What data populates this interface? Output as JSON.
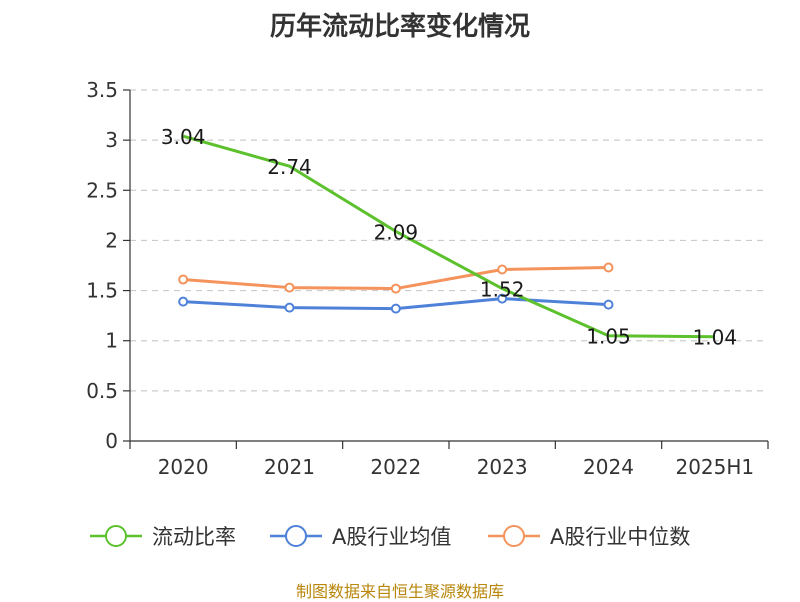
{
  "chart_data": {
    "type": "line",
    "title": "历年流动比率变化情况",
    "categories": [
      "2020",
      "2021",
      "2022",
      "2023",
      "2024",
      "2025H1"
    ],
    "ylim": [
      0,
      3.5
    ],
    "yticks": [
      "0",
      "0.5",
      "1",
      "1.5",
      "2",
      "2.5",
      "3",
      "3.5"
    ],
    "grid": true,
    "legend_position": "bottom",
    "series": [
      {
        "name": "流动比率",
        "color": "#5cc12d",
        "values": [
          3.04,
          2.74,
          2.09,
          1.52,
          1.05,
          1.04
        ],
        "labels": [
          "3.04",
          "2.74",
          "2.09",
          "1.52",
          "1.05",
          "1.04"
        ]
      },
      {
        "name": "A股行业均值",
        "color": "#4f81d9",
        "values": [
          1.39,
          1.33,
          1.32,
          1.42,
          1.36,
          null
        ]
      },
      {
        "name": "A股行业中位数",
        "color": "#f4935c",
        "values": [
          1.61,
          1.53,
          1.52,
          1.71,
          1.73,
          null
        ]
      }
    ]
  },
  "source_note": "制图数据来自恒生聚源数据库"
}
